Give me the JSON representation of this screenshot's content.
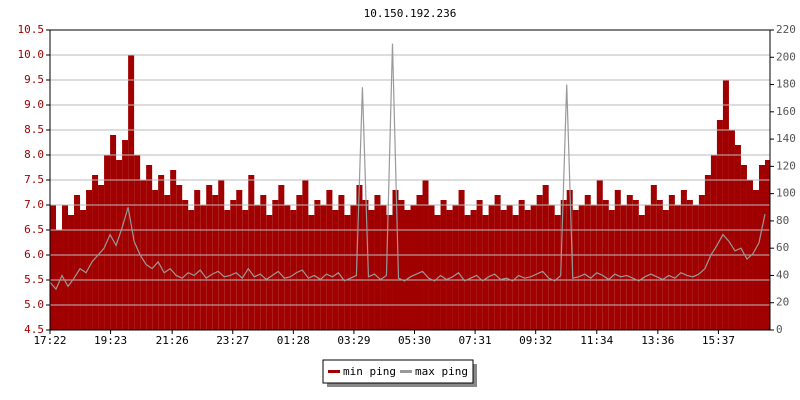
{
  "chart_data": {
    "type": "line",
    "title": "10.150.192.236",
    "x": [
      0,
      12,
      24,
      36,
      48,
      60,
      72,
      84,
      96,
      108,
      120,
      132,
      144,
      156,
      168,
      180,
      192,
      204,
      216,
      228,
      240,
      252,
      264,
      276,
      288,
      300,
      312,
      324,
      336,
      348,
      360,
      372,
      384,
      396,
      408,
      420,
      432,
      444,
      456,
      468,
      480,
      492,
      504,
      516,
      528,
      540,
      552,
      564,
      576,
      588,
      600,
      612,
      624,
      636,
      648,
      660,
      672,
      684,
      696,
      708,
      720,
      732,
      744,
      756,
      768,
      780,
      792,
      804,
      816,
      828,
      840,
      852,
      864,
      876,
      888,
      900,
      912,
      924,
      936,
      948,
      960,
      972,
      984,
      996,
      1008,
      1020,
      1032,
      1044,
      1056,
      1068,
      1080,
      1092,
      1104,
      1116,
      1128,
      1140,
      1152,
      1164,
      1176,
      1188,
      1200,
      1212,
      1224,
      1236,
      1248,
      1260,
      1272,
      1284,
      1296,
      1308,
      1320,
      1332,
      1344,
      1356,
      1368,
      1380,
      1392,
      1404,
      1416,
      1428
    ],
    "xlim": [
      0,
      1438
    ],
    "xticks": [
      {
        "value": 0,
        "label": "17:22"
      },
      {
        "value": 121,
        "label": "19:23"
      },
      {
        "value": 244,
        "label": "21:26"
      },
      {
        "value": 365,
        "label": "23:27"
      },
      {
        "value": 486,
        "label": "01:28"
      },
      {
        "value": 607,
        "label": "03:29"
      },
      {
        "value": 728,
        "label": "05:30"
      },
      {
        "value": 849,
        "label": "07:31"
      },
      {
        "value": 970,
        "label": "09:32"
      },
      {
        "value": 1092,
        "label": "11:34"
      },
      {
        "value": 1214,
        "label": "13:36"
      },
      {
        "value": 1335,
        "label": "15:37"
      }
    ],
    "ylim": [
      4.5,
      10.5
    ],
    "yticks": [
      4.5,
      {
        "value": 5,
        "label": "5.0"
      },
      5.5,
      {
        "value": 6,
        "label": "6.0"
      },
      6.5,
      {
        "value": 7,
        "label": "7.0"
      },
      7.5,
      {
        "value": 8,
        "label": "8.0"
      },
      8.5,
      {
        "value": 9,
        "label": "9.0"
      },
      9.5,
      {
        "value": 10,
        "label": "10.0"
      },
      10.5
    ],
    "y2lim": [
      0,
      220
    ],
    "y2ticks": [
      0,
      20,
      40,
      60,
      80,
      100,
      120,
      140,
      160,
      180,
      200,
      220
    ],
    "grid": true,
    "legend": "bottom",
    "series": [
      {
        "name": "min ping",
        "color": "#a00000",
        "values": [
          7.0,
          6.5,
          7.0,
          6.8,
          7.2,
          6.9,
          7.3,
          7.6,
          7.4,
          8.0,
          8.4,
          7.9,
          8.3,
          10.0,
          8.0,
          7.5,
          7.8,
          7.3,
          7.6,
          7.2,
          7.7,
          7.4,
          7.1,
          6.9,
          7.3,
          7.0,
          7.4,
          7.2,
          7.5,
          6.9,
          7.1,
          7.3,
          6.9,
          7.6,
          7.0,
          7.2,
          6.8,
          7.1,
          7.4,
          7.0,
          6.9,
          7.2,
          7.5,
          6.8,
          7.1,
          7.0,
          7.3,
          6.9,
          7.2,
          6.8,
          7.0,
          7.4,
          7.1,
          6.9,
          7.2,
          7.0,
          6.8,
          7.3,
          7.1,
          6.9,
          7.0,
          7.2,
          7.5,
          7.0,
          6.8,
          7.1,
          6.9,
          7.0,
          7.3,
          6.8,
          6.9,
          7.1,
          6.8,
          7.0,
          7.2,
          6.9,
          7.0,
          6.8,
          7.1,
          6.9,
          7.0,
          7.2,
          7.4,
          7.0,
          6.8,
          7.1,
          7.3,
          6.9,
          7.0,
          7.2,
          7.0,
          7.5,
          7.1,
          6.9,
          7.3,
          7.0,
          7.2,
          7.1,
          6.8,
          7.0,
          7.4,
          7.1,
          6.9,
          7.2,
          7.0,
          7.3,
          7.1,
          7.0,
          7.2,
          7.6,
          8.0,
          8.7,
          9.5,
          8.5,
          8.2,
          7.8,
          7.5,
          7.3,
          7.8,
          7.9
        ]
      },
      {
        "name": "max ping",
        "color": "#999999",
        "axis": "y2",
        "values": [
          35,
          30,
          40,
          32,
          38,
          45,
          42,
          50,
          55,
          60,
          70,
          62,
          75,
          90,
          65,
          55,
          48,
          45,
          50,
          42,
          45,
          40,
          38,
          42,
          40,
          44,
          38,
          41,
          43,
          39,
          40,
          42,
          38,
          45,
          39,
          41,
          37,
          40,
          43,
          38,
          39,
          42,
          44,
          38,
          40,
          37,
          41,
          39,
          42,
          36,
          38,
          40,
          178,
          39,
          41,
          37,
          40,
          210,
          38,
          36,
          39,
          41,
          43,
          38,
          36,
          40,
          37,
          39,
          42,
          36,
          38,
          40,
          36,
          39,
          41,
          37,
          38,
          36,
          40,
          38,
          39,
          41,
          43,
          38,
          36,
          40,
          180,
          38,
          39,
          41,
          38,
          42,
          40,
          37,
          41,
          39,
          40,
          38,
          36,
          39,
          41,
          39,
          37,
          40,
          38,
          42,
          40,
          39,
          41,
          45,
          55,
          62,
          70,
          65,
          58,
          60,
          52,
          56,
          64,
          85
        ]
      }
    ]
  }
}
